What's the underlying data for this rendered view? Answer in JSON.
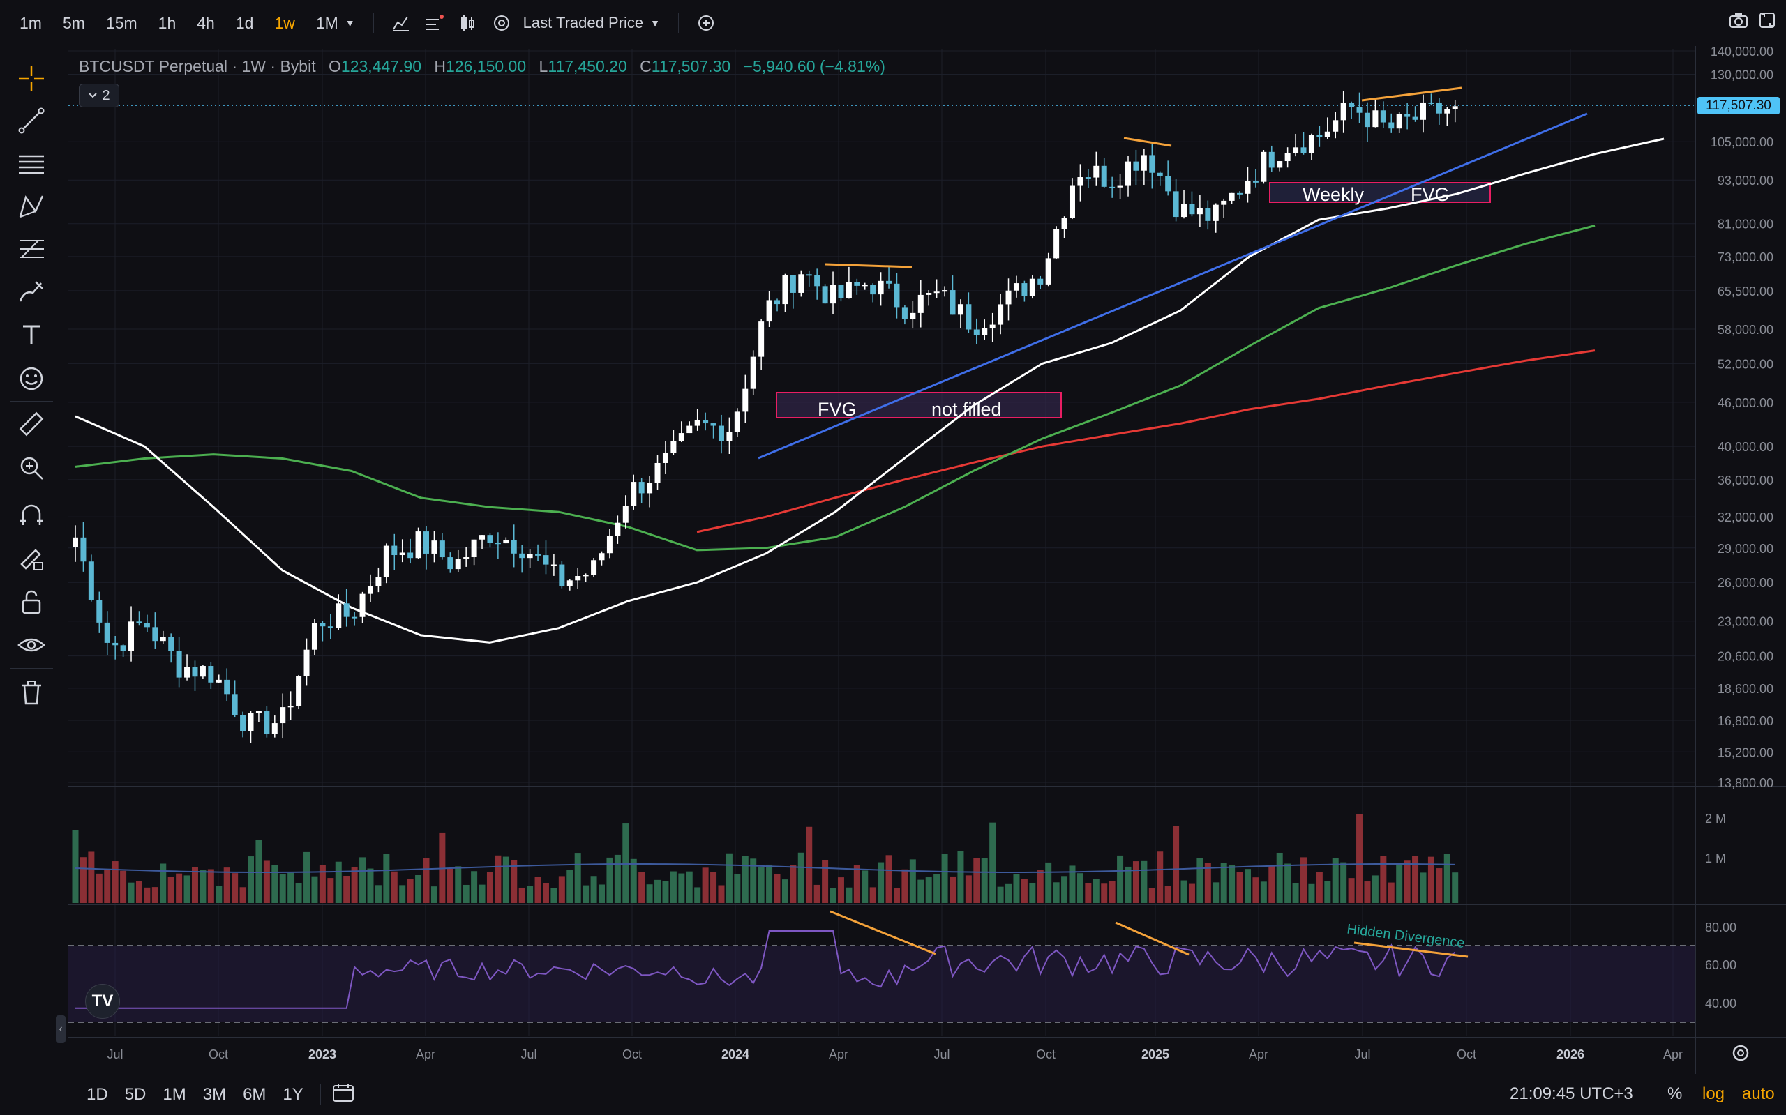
{
  "toolbar": {
    "timeframes": [
      "1m",
      "5m",
      "15m",
      "1h",
      "4h",
      "1d",
      "1w",
      "1M"
    ],
    "active_timeframe": "1w",
    "price_source": "Last Traded Price",
    "accent_color": "#f7a600"
  },
  "legend": {
    "symbol": "BTCUSDT Perpetual",
    "interval": "1W",
    "exchange": "Bybit",
    "open_label": "O",
    "open": "123,447.90",
    "high_label": "H",
    "high": "126,150.00",
    "low_label": "L",
    "low": "117,450.20",
    "close_label": "C",
    "close": "117,507.30",
    "change": "−5,940.60 (−4.81%)",
    "indicator_count": "2"
  },
  "price_axis": {
    "current_price": "117,507.30",
    "labels": [
      "140,000.00",
      "130,000.00",
      "105,000.00",
      "93,000.00",
      "81,000.00",
      "73,000.00",
      "65,500.00",
      "58,000.00",
      "52,000.00",
      "46,000.00",
      "40,000.00",
      "36,000.00",
      "32,000.00",
      "29,000.00",
      "26,000.00",
      "23,000.00",
      "20,600.00",
      "18,600.00",
      "16,800.00",
      "15,200.00",
      "13,800.00"
    ],
    "volume_labels": [
      "2 M",
      "1 M"
    ],
    "rsi_labels": [
      "80.00",
      "60.00",
      "40.00"
    ]
  },
  "time_axis": {
    "labels": [
      "Jul",
      "Oct",
      "2023",
      "Apr",
      "Jul",
      "Oct",
      "2024",
      "Apr",
      "Jul",
      "Oct",
      "2025",
      "Apr",
      "Jul",
      "Oct",
      "2026",
      "Apr"
    ]
  },
  "annotations": {
    "fvg1_left": "FVG",
    "fvg1_right": "not filled",
    "fvg2_left": "Weekly",
    "fvg2_right": "FVG",
    "divergence": "Hidden Divergence"
  },
  "bottom": {
    "ranges": [
      "1D",
      "5D",
      "1M",
      "3M",
      "6M",
      "1Y"
    ],
    "clock": "21:09:45 UTC+3",
    "percent": "%",
    "log": "log",
    "auto": "auto"
  },
  "colors": {
    "up": "#26a69a",
    "up_candle": "#5bb8d4",
    "down": "#ef5350",
    "ma_white": "#ffffff",
    "ma_green": "#4caf50",
    "ma_red": "#e53935",
    "trendline": "#3f6ee8",
    "swing_line": "#f4a23a",
    "rsi": "#7e57c2",
    "fvg_border": "#e91e63"
  },
  "chart_data": {
    "type": "candlestick",
    "series_name": "BTCUSDT Perpetual",
    "scale": "log",
    "ohlc_weekly": [
      {
        "x": "2022-06",
        "close": 30000
      },
      {
        "x": "2022-07",
        "close": 21000
      },
      {
        "x": "2022-08",
        "close": 23000
      },
      {
        "x": "2022-09",
        "close": 20000
      },
      {
        "x": "2022-10",
        "close": 19500
      },
      {
        "x": "2022-11",
        "close": 16500
      },
      {
        "x": "2022-12",
        "close": 16800
      },
      {
        "x": "2023-01",
        "close": 23000
      },
      {
        "x": "2023-02",
        "close": 23500
      },
      {
        "x": "2023-03",
        "close": 28500
      },
      {
        "x": "2023-04",
        "close": 29500
      },
      {
        "x": "2023-05",
        "close": 27500
      },
      {
        "x": "2023-06",
        "close": 30500
      },
      {
        "x": "2023-07",
        "close": 29200
      },
      {
        "x": "2023-08",
        "close": 26000
      },
      {
        "x": "2023-09",
        "close": 27000
      },
      {
        "x": "2023-10",
        "close": 34500
      },
      {
        "x": "2023-11",
        "close": 37500
      },
      {
        "x": "2023-12",
        "close": 42500
      },
      {
        "x": "2024-01",
        "close": 42500
      },
      {
        "x": "2024-02",
        "close": 61500
      },
      {
        "x": "2024-03",
        "close": 70000
      },
      {
        "x": "2024-04",
        "close": 63500
      },
      {
        "x": "2024-05",
        "close": 67500
      },
      {
        "x": "2024-06",
        "close": 62500
      },
      {
        "x": "2024-07",
        "close": 64500
      },
      {
        "x": "2024-08",
        "close": 59000
      },
      {
        "x": "2024-09",
        "close": 63500
      },
      {
        "x": "2024-10",
        "close": 70000
      },
      {
        "x": "2024-11",
        "close": 96500
      },
      {
        "x": "2024-12",
        "close": 93500
      },
      {
        "x": "2025-01",
        "close": 102000
      },
      {
        "x": "2025-02",
        "close": 84500
      },
      {
        "x": "2025-03",
        "close": 82500
      },
      {
        "x": "2025-04",
        "close": 94500
      },
      {
        "x": "2025-05",
        "close": 104000
      },
      {
        "x": "2025-06",
        "close": 107000
      },
      {
        "x": "2025-07",
        "close": 117500
      },
      {
        "x": "2025-08",
        "close": 109000
      },
      {
        "x": "2025-09",
        "close": 114000
      },
      {
        "x": "2025-10",
        "close": 117507.3
      }
    ],
    "ylim": [
      13800,
      140000
    ]
  }
}
